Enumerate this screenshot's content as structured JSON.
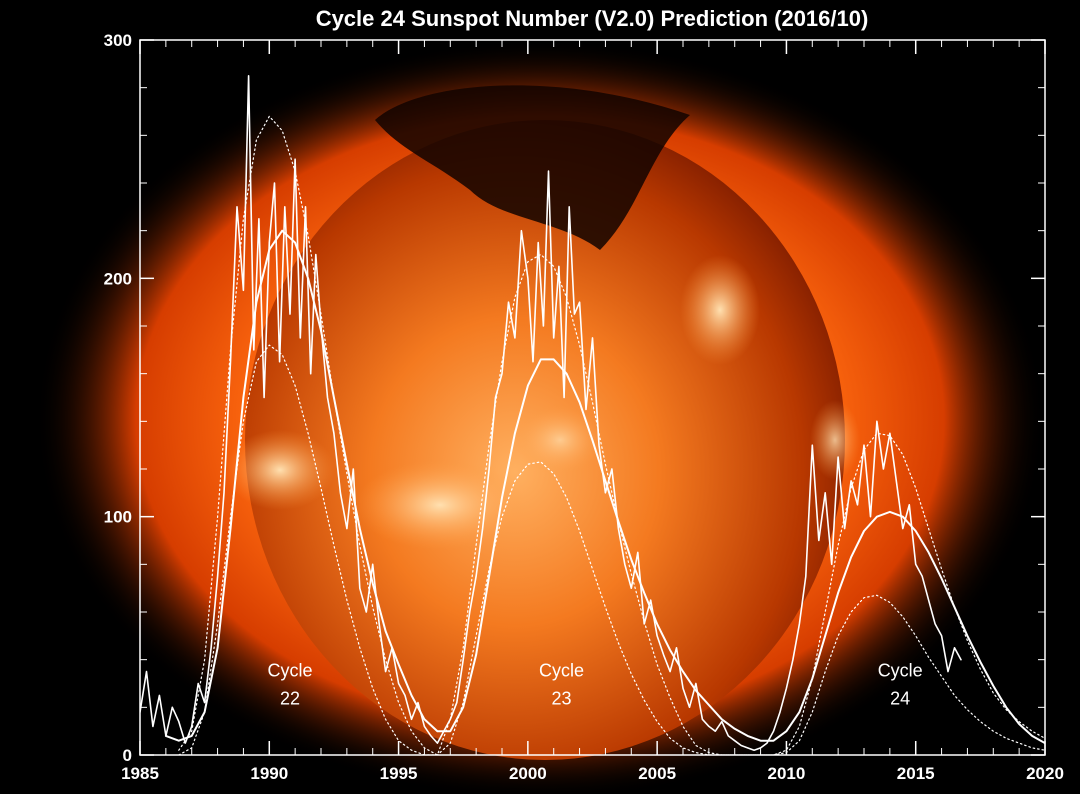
{
  "chart_data": {
    "type": "line",
    "title": "Cycle 24 Sunspot Number (V2.0) Prediction (2016/10)",
    "xlabel": "",
    "ylabel": "",
    "xlim": [
      1985,
      2020
    ],
    "ylim": [
      0,
      300
    ],
    "x_ticks": [
      "1985",
      "1990",
      "1995",
      "2000",
      "2005",
      "2010",
      "2015",
      "2020"
    ],
    "y_ticks": [
      "0",
      "100",
      "200",
      "300"
    ],
    "background": "solar X-ray image (orange sun disk)",
    "colors": {
      "line": "#ffffff",
      "background": "#000000",
      "sun_core": "#ff8a2a",
      "sun_edge": "#c43a00"
    },
    "annotations": [
      {
        "line1": "Cycle",
        "line2": "22",
        "x": 1990.8,
        "y": 33
      },
      {
        "line1": "Cycle",
        "line2": "23",
        "x": 2001.3,
        "y": 33
      },
      {
        "line1": "Cycle",
        "line2": "24",
        "x": 2014.4,
        "y": 33
      }
    ],
    "series": [
      {
        "style": "monthly (jagged)",
        "x": [
          1985.0,
          1985.25,
          1985.5,
          1985.75,
          1986.0,
          1986.25,
          1986.5,
          1986.75,
          1987.0,
          1987.25,
          1987.5,
          1987.75,
          1988.0,
          1988.25,
          1988.5,
          1988.75,
          1989.0,
          1989.2,
          1989.4,
          1989.6,
          1989.8,
          1990.0,
          1990.2,
          1990.4,
          1990.6,
          1990.8,
          1991.0,
          1991.2,
          1991.4,
          1991.6,
          1991.8,
          1992.0,
          1992.25,
          1992.5,
          1992.75,
          1993.0,
          1993.25,
          1993.5,
          1993.75,
          1994.0,
          1994.25,
          1994.5,
          1994.75,
          1995.0,
          1995.25,
          1995.5,
          1995.75,
          1996.0,
          1996.25,
          1996.5,
          1996.75,
          1997.0,
          1997.25,
          1997.5,
          1997.75,
          1998.0,
          1998.25,
          1998.5,
          1998.75,
          1999.0,
          1999.25,
          1999.5,
          1999.75,
          2000.0,
          2000.2,
          2000.4,
          2000.6,
          2000.8,
          2001.0,
          2001.2,
          2001.4,
          2001.6,
          2001.8,
          2002.0,
          2002.25,
          2002.5,
          2002.75,
          2003.0,
          2003.25,
          2003.5,
          2003.75,
          2004.0,
          2004.25,
          2004.5,
          2004.75,
          2005.0,
          2005.25,
          2005.5,
          2005.75,
          2006.0,
          2006.25,
          2006.5,
          2006.75,
          2007.0,
          2007.25,
          2007.5,
          2007.75,
          2008.0,
          2008.25,
          2008.5,
          2008.75,
          2009.0,
          2009.25,
          2009.5,
          2009.75,
          2010.0,
          2010.25,
          2010.5,
          2010.75,
          2011.0,
          2011.25,
          2011.5,
          2011.75,
          2012.0,
          2012.25,
          2012.5,
          2012.75,
          2013.0,
          2013.25,
          2013.5,
          2013.75,
          2014.0,
          2014.25,
          2014.5,
          2014.75,
          2015.0,
          2015.25,
          2015.5,
          2015.75,
          2016.0,
          2016.25,
          2016.5,
          2016.75
        ],
        "y": [
          18,
          35,
          12,
          25,
          8,
          20,
          14,
          5,
          12,
          30,
          22,
          45,
          75,
          110,
          165,
          230,
          195,
          285,
          170,
          225,
          150,
          215,
          240,
          165,
          230,
          185,
          250,
          175,
          230,
          160,
          210,
          180,
          150,
          135,
          110,
          95,
          120,
          70,
          60,
          80,
          55,
          35,
          45,
          30,
          25,
          15,
          22,
          12,
          8,
          5,
          10,
          15,
          22,
          40,
          60,
          75,
          95,
          120,
          150,
          160,
          190,
          175,
          220,
          200,
          165,
          215,
          180,
          245,
          175,
          205,
          150,
          230,
          185,
          190,
          145,
          175,
          130,
          110,
          120,
          95,
          80,
          70,
          85,
          55,
          65,
          50,
          42,
          35,
          45,
          28,
          20,
          30,
          15,
          12,
          10,
          14,
          8,
          6,
          4,
          3,
          2,
          3,
          5,
          10,
          18,
          28,
          40,
          55,
          75,
          130,
          90,
          110,
          80,
          125,
          95,
          115,
          105,
          130,
          100,
          140,
          120,
          135,
          115,
          95,
          105,
          80,
          75,
          65,
          55,
          50,
          35,
          45,
          40
        ],
        "stroke_width": 1.6
      },
      {
        "style": "smoothed (solid)",
        "x": [
          1986.0,
          1986.5,
          1987.0,
          1987.5,
          1988.0,
          1988.5,
          1989.0,
          1989.5,
          1990.0,
          1990.5,
          1991.0,
          1991.5,
          1992.0,
          1992.5,
          1993.0,
          1993.5,
          1994.0,
          1994.5,
          1995.0,
          1995.5,
          1996.0,
          1996.5,
          1997.0,
          1997.5,
          1998.0,
          1998.5,
          1999.0,
          1999.5,
          2000.0,
          2000.5,
          2001.0,
          2001.5,
          2002.0,
          2002.5,
          2003.0,
          2003.5,
          2004.0,
          2004.5,
          2005.0,
          2005.5,
          2006.0,
          2006.5,
          2007.0,
          2007.5,
          2008.0,
          2008.5,
          2009.0,
          2009.5,
          2010.0,
          2010.5,
          2011.0,
          2011.5,
          2012.0,
          2012.5,
          2013.0,
          2013.5,
          2014.0,
          2014.5,
          2015.0,
          2015.5,
          2016.0,
          2016.5,
          2017.0,
          2017.5,
          2018.0,
          2018.5,
          2019.0,
          2019.5,
          2020.0
        ],
        "y": [
          8,
          6,
          8,
          18,
          45,
          95,
          150,
          190,
          212,
          220,
          215,
          200,
          178,
          150,
          122,
          95,
          72,
          52,
          38,
          25,
          15,
          10,
          10,
          20,
          42,
          75,
          108,
          135,
          155,
          166,
          166,
          160,
          148,
          132,
          115,
          98,
          82,
          68,
          55,
          44,
          35,
          27,
          21,
          15,
          11,
          8,
          6,
          6,
          10,
          18,
          32,
          50,
          68,
          83,
          94,
          100,
          102,
          100,
          94,
          85,
          74,
          62,
          50,
          39,
          29,
          20,
          13,
          8,
          5
        ],
        "stroke_width": 2
      },
      {
        "style": "prediction upper (dotted)",
        "x": [
          1986.5,
          1987.0,
          1987.5,
          1988.0,
          1988.5,
          1989.0,
          1989.5,
          1990.0,
          1990.5,
          1991.0,
          1991.5,
          1992.0,
          1992.5,
          1993.0,
          1993.5,
          1994.0,
          1994.5,
          1995.0,
          1995.5,
          1996.0,
          1996.5,
          1996.5,
          1997.0,
          1997.5,
          1998.0,
          1998.5,
          1999.0,
          1999.5,
          2000.0,
          2000.5,
          2001.0,
          2001.5,
          2002.0,
          2002.5,
          2003.0,
          2003.5,
          2004.0,
          2004.5,
          2005.0,
          2005.5,
          2006.0,
          2006.5,
          2007.0,
          2007.5,
          2008.0,
          2008.5,
          2009.0,
          2009.5,
          2009.5,
          2010.0,
          2010.5,
          2011.0,
          2011.5,
          2012.0,
          2012.5,
          2013.0,
          2013.5,
          2014.0,
          2014.5,
          2015.0,
          2015.5,
          2016.0,
          2016.5,
          2017.0,
          2017.5,
          2018.0,
          2018.5,
          2019.0,
          2019.5,
          2020.0
        ],
        "y": [
          2,
          10,
          40,
          100,
          170,
          225,
          258,
          268,
          262,
          245,
          218,
          185,
          150,
          118,
          88,
          62,
          40,
          22,
          10,
          3,
          0,
          0,
          15,
          45,
          88,
          130,
          165,
          192,
          207,
          210,
          205,
          192,
          172,
          148,
          122,
          98,
          76,
          56,
          38,
          24,
          12,
          4,
          1,
          0,
          0,
          0,
          0,
          0,
          0,
          2,
          12,
          32,
          60,
          88,
          112,
          128,
          135,
          134,
          126,
          112,
          95,
          78,
          62,
          48,
          36,
          26,
          19,
          14,
          10,
          7
        ],
        "stroke_width": 1.2
      },
      {
        "style": "prediction lower (dotted)",
        "x": [
          1986.5,
          1987.0,
          1987.5,
          1988.0,
          1988.5,
          1989.0,
          1989.5,
          1990.0,
          1990.5,
          1991.0,
          1991.5,
          1992.0,
          1992.5,
          1993.0,
          1993.5,
          1994.0,
          1994.5,
          1995.0,
          1995.5,
          1996.0,
          1996.5,
          1996.5,
          1997.0,
          1997.5,
          1998.0,
          1998.5,
          1999.0,
          1999.5,
          2000.0,
          2000.5,
          2001.0,
          2001.5,
          2002.0,
          2002.5,
          2003.0,
          2003.5,
          2004.0,
          2004.5,
          2005.0,
          2005.5,
          2006.0,
          2006.5,
          2007.0,
          2007.5,
          2008.0,
          2008.5,
          2009.0,
          2009.5,
          2009.5,
          2010.0,
          2010.5,
          2011.0,
          2011.5,
          2012.0,
          2012.5,
          2013.0,
          2013.5,
          2014.0,
          2014.5,
          2015.0,
          2015.5,
          2016.0,
          2016.5,
          2017.0,
          2017.5,
          2018.0,
          2018.5,
          2019.0,
          2019.5,
          2020.0
        ],
        "y": [
          0,
          3,
          18,
          55,
          100,
          140,
          165,
          172,
          168,
          155,
          135,
          112,
          88,
          65,
          45,
          28,
          15,
          6,
          2,
          0,
          0,
          0,
          5,
          22,
          50,
          78,
          100,
          115,
          122,
          123,
          118,
          108,
          94,
          78,
          62,
          47,
          34,
          23,
          14,
          7,
          3,
          1,
          0,
          0,
          0,
          0,
          0,
          0,
          0,
          1,
          6,
          18,
          35,
          50,
          60,
          66,
          67,
          64,
          58,
          50,
          41,
          33,
          25,
          19,
          14,
          10,
          7,
          5,
          3,
          2
        ],
        "stroke_width": 1.2
      }
    ]
  }
}
